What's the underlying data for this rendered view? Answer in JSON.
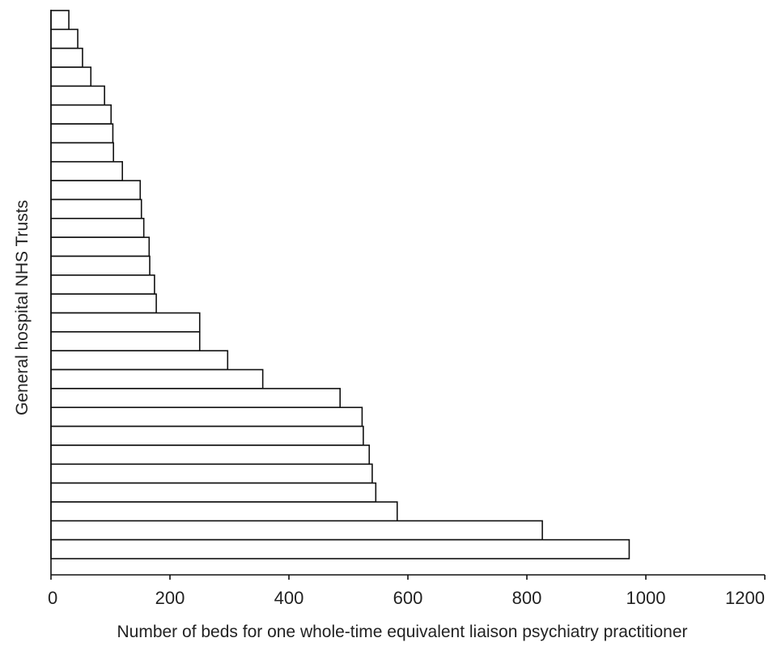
{
  "chart_data": {
    "type": "bar",
    "orientation": "horizontal",
    "xlabel": "Number of beds for one whole-time equivalent liaison psychiatry practitioner",
    "ylabel": "General hospital NHS Trusts",
    "xlim": [
      0,
      1200
    ],
    "xticks": [
      0,
      200,
      400,
      600,
      800,
      1000,
      1200
    ],
    "xtick_labels": [
      "0",
      "200",
      "400",
      "600",
      "800",
      "1000",
      "1200"
    ],
    "grid": false,
    "values": [
      30,
      45,
      53,
      67,
      90,
      101,
      104,
      105,
      120,
      150,
      152,
      156,
      165,
      166,
      174,
      177,
      250,
      250,
      297,
      356,
      486,
      523,
      525,
      535,
      540,
      546,
      582,
      826,
      972
    ]
  }
}
